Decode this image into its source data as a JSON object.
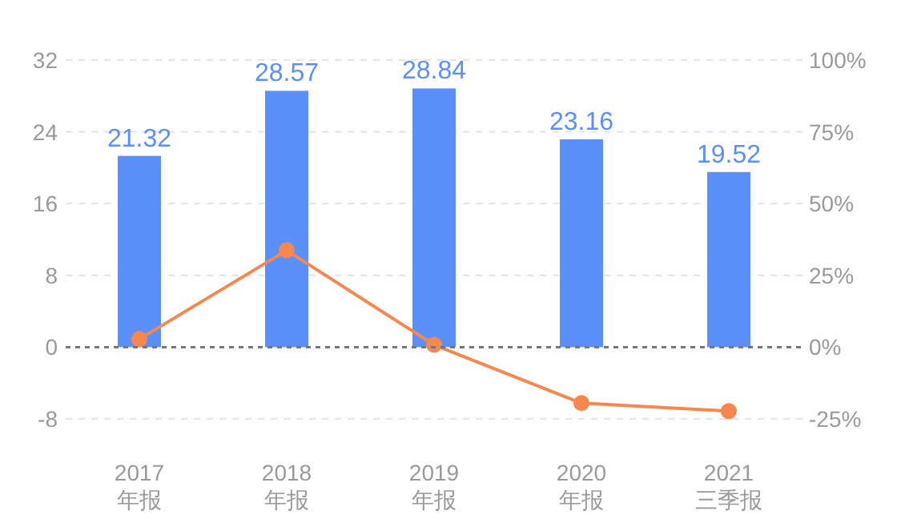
{
  "chart_data": {
    "type": "bar",
    "categories": [
      "2017\n年报",
      "2018\n年报",
      "2019\n年报",
      "2020\n年报",
      "2021\n三季报"
    ],
    "series": [
      {
        "type": "bar",
        "color": "#5b8ff9",
        "values": [
          21.32,
          28.57,
          28.84,
          23.16,
          19.52
        ],
        "value_labels": [
          "21.32",
          "28.57",
          "28.84",
          "23.16",
          "19.52"
        ]
      },
      {
        "type": "line",
        "axis": "y2",
        "color": "#f6874e",
        "values": [
          2.8,
          33.7,
          0.8,
          -19.5,
          -22.3
        ]
      }
    ],
    "ylim": [
      -8,
      32
    ],
    "yticks": [
      -8,
      0,
      8,
      16,
      24,
      32
    ],
    "y2lim": [
      -25,
      100
    ],
    "y2ticks": [
      {
        "value": -25,
        "label": "-25%"
      },
      {
        "value": 0,
        "label": "0%"
      },
      {
        "value": 25,
        "label": "25%"
      },
      {
        "value": 50,
        "label": "50%"
      },
      {
        "value": 75,
        "label": "75%"
      },
      {
        "value": 100,
        "label": "100%"
      }
    ],
    "ref_lines": [
      {
        "axis": "y",
        "value": 0,
        "color": "#777777",
        "line_style": "dashed"
      }
    ],
    "grid": "y",
    "marker": "circle"
  }
}
